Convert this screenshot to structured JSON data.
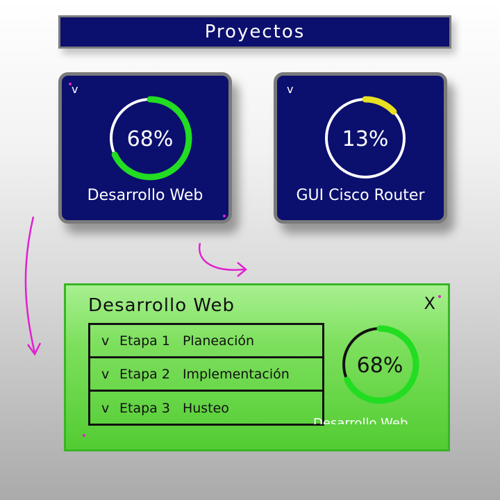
{
  "header": {
    "title": "Proyectos"
  },
  "cards": [
    {
      "label": "Desarrollo Web",
      "percent": 68,
      "percent_text": "68%",
      "toggle_icon": "chevron-down-icon",
      "toggle_glyph": "v",
      "ring_color": "#22dd22"
    },
    {
      "label": "GUI Cisco Router",
      "percent": 13,
      "percent_text": "13%",
      "toggle_icon": "chevron-down-icon",
      "toggle_glyph": "v",
      "ring_color": "#e8e020"
    }
  ],
  "detail": {
    "title": "Desarrollo Web",
    "close_label": "X",
    "close_icon": "close-icon",
    "percent": 68,
    "percent_text": "68%",
    "ring_color": "#22dd22",
    "subtitle": "Desarrollo Web",
    "stages": [
      {
        "check": "v",
        "name": "Etapa 1",
        "phase": "Planeación"
      },
      {
        "check": "v",
        "name": "Etapa 2",
        "phase": "Implementación"
      },
      {
        "check": "v",
        "name": "Etapa 3",
        "phase": "Husteo"
      }
    ]
  },
  "colors": {
    "card_background": "#0b0f6e",
    "card_border": "#7a7a7a",
    "panel_green": "#6ad84a",
    "arrow_magenta": "#e020d0"
  }
}
